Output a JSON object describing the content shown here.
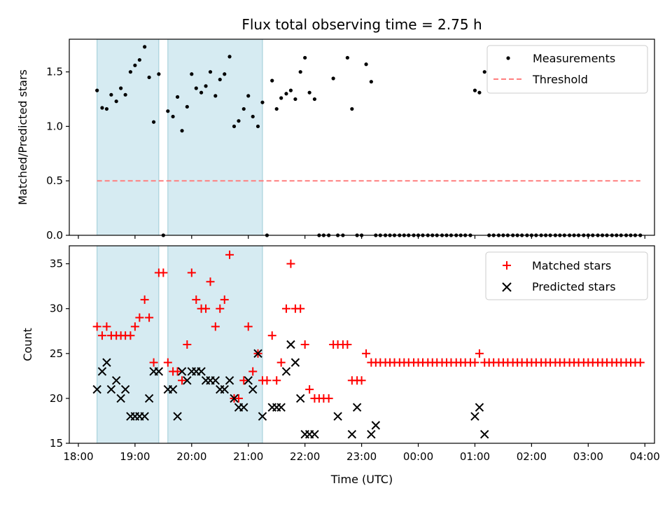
{
  "chart_data": [
    {
      "type": "scatter",
      "title": "Flux total observing time = 2.75 h",
      "ylabel": "Matched/Predicted stars",
      "xlabel": "",
      "xlim": [
        17.84,
        28.17
      ],
      "ylim": [
        0.0,
        1.8
      ],
      "yticks": [
        0.0,
        0.5,
        1.0,
        1.5
      ],
      "ytick_labels": [
        "0.0",
        "0.5",
        "1.0",
        "1.5"
      ],
      "shaded_intervals": [
        [
          18.33,
          19.42
        ],
        [
          19.58,
          21.25
        ]
      ],
      "threshold": {
        "value": 0.5,
        "x_range": [
          18.33,
          27.92
        ],
        "color": "#ff7f7f"
      },
      "legend": {
        "position": "top-right",
        "entries": [
          "Measurements",
          "Threshold"
        ]
      },
      "series": [
        {
          "name": "Measurements",
          "x": [
            18.33,
            18.42,
            18.5,
            18.58,
            18.67,
            18.75,
            18.83,
            18.92,
            19.0,
            19.08,
            19.17,
            19.25,
            19.33,
            19.42,
            19.5,
            19.58,
            19.67,
            19.75,
            19.83,
            19.92,
            20.0,
            20.08,
            20.17,
            20.25,
            20.33,
            20.42,
            20.5,
            20.58,
            20.67,
            20.75,
            20.83,
            20.92,
            21.0,
            21.08,
            21.17,
            21.25,
            21.33,
            21.42,
            21.5,
            21.58,
            21.67,
            21.75,
            21.83,
            21.92,
            22.0,
            22.08,
            22.17,
            22.25,
            22.33,
            22.42,
            22.5,
            22.58,
            22.67,
            22.75,
            22.83,
            22.92,
            23.0,
            23.08,
            23.17,
            23.25,
            23.33,
            23.42,
            23.5,
            23.58,
            23.67,
            23.75,
            23.83,
            23.92,
            24.0,
            24.08,
            24.17,
            24.25,
            24.33,
            24.42,
            24.5,
            24.58,
            24.67,
            24.75,
            24.83,
            24.92,
            25.0,
            25.08,
            25.17,
            25.25,
            25.33,
            25.42,
            25.5,
            25.58,
            25.67,
            25.75,
            25.83,
            25.92,
            26.0,
            26.08,
            26.17,
            26.25,
            26.33,
            26.42,
            26.5,
            26.58,
            26.67,
            26.75,
            26.83,
            26.92,
            27.0,
            27.08,
            27.17,
            27.25,
            27.33,
            27.42,
            27.5,
            27.58,
            27.67,
            27.75,
            27.83,
            27.92
          ],
          "y": [
            1.33,
            1.17,
            1.16,
            1.29,
            1.23,
            1.35,
            1.29,
            1.5,
            1.56,
            1.61,
            1.73,
            1.45,
            1.04,
            1.48,
            0.0,
            1.14,
            1.09,
            1.27,
            0.96,
            1.18,
            1.48,
            1.35,
            1.31,
            1.37,
            1.5,
            1.28,
            1.43,
            1.48,
            1.64,
            1.0,
            1.05,
            1.16,
            1.28,
            1.09,
            1.0,
            1.22,
            0.0,
            1.42,
            1.16,
            1.26,
            1.3,
            1.33,
            1.25,
            1.5,
            1.63,
            1.31,
            1.25,
            0.0,
            0.0,
            0.0,
            1.44,
            0.0,
            0.0,
            1.63,
            1.16,
            0.0,
            0.0,
            1.57,
            1.41,
            0.0,
            0.0,
            0.0,
            0.0,
            0.0,
            0.0,
            0.0,
            0.0,
            0.0,
            0.0,
            0.0,
            0.0,
            0.0,
            0.0,
            0.0,
            0.0,
            0.0,
            0.0,
            0.0,
            0.0,
            0.0,
            1.33,
            1.31,
            1.5,
            0.0,
            0.0,
            0.0,
            0.0,
            0.0,
            0.0,
            0.0,
            0.0,
            0.0,
            0.0,
            0.0,
            0.0,
            0.0,
            0.0,
            0.0,
            0.0,
            0.0,
            0.0,
            0.0,
            0.0,
            0.0,
            0.0,
            0.0,
            0.0,
            0.0,
            0.0,
            0.0,
            0.0,
            0.0,
            0.0,
            0.0,
            0.0,
            0.0
          ]
        }
      ]
    },
    {
      "type": "scatter",
      "title": "",
      "ylabel": "Count",
      "xlabel": "Time (UTC)",
      "xlim": [
        17.84,
        28.17
      ],
      "ylim": [
        15,
        37
      ],
      "yticks": [
        15,
        20,
        25,
        30,
        35
      ],
      "ytick_labels": [
        "15",
        "20",
        "25",
        "30",
        "35"
      ],
      "xticks": [
        18,
        19,
        20,
        21,
        22,
        23,
        24,
        25,
        26,
        27,
        28
      ],
      "xtick_labels": [
        "18:00",
        "19:00",
        "20:00",
        "21:00",
        "22:00",
        "23:00",
        "00:00",
        "01:00",
        "02:00",
        "03:00",
        "04:00"
      ],
      "shaded_intervals": [
        [
          18.33,
          19.42
        ],
        [
          19.58,
          21.25
        ]
      ],
      "legend": {
        "position": "top-right",
        "entries": [
          "Matched stars",
          "Predicted stars"
        ]
      },
      "series": [
        {
          "name": "Matched stars",
          "marker": "+",
          "color": "#ff0000",
          "x": [
            18.33,
            18.42,
            18.5,
            18.58,
            18.67,
            18.75,
            18.83,
            18.92,
            19.0,
            19.08,
            19.17,
            19.25,
            19.33,
            19.42,
            19.5,
            19.58,
            19.67,
            19.75,
            19.83,
            19.92,
            20.0,
            20.08,
            20.17,
            20.25,
            20.33,
            20.42,
            20.5,
            20.58,
            20.67,
            20.75,
            20.83,
            20.92,
            21.0,
            21.08,
            21.17,
            21.25,
            21.33,
            21.42,
            21.5,
            21.58,
            21.67,
            21.75,
            21.83,
            21.92,
            22.0,
            22.08,
            22.17,
            22.25,
            22.33,
            22.42,
            22.5,
            22.58,
            22.67,
            22.75,
            22.83,
            22.92,
            23.0,
            23.08,
            23.17,
            23.25,
            23.33,
            23.42,
            23.5,
            23.58,
            23.67,
            23.75,
            23.83,
            23.92,
            24.0,
            24.08,
            24.17,
            24.25,
            24.33,
            24.42,
            24.5,
            24.58,
            24.67,
            24.75,
            24.83,
            24.92,
            25.0,
            25.08,
            25.17,
            25.25,
            25.33,
            25.42,
            25.5,
            25.58,
            25.67,
            25.75,
            25.83,
            25.92,
            26.0,
            26.08,
            26.17,
            26.25,
            26.33,
            26.42,
            26.5,
            26.58,
            26.67,
            26.75,
            26.83,
            26.92,
            27.0,
            27.08,
            27.17,
            27.25,
            27.33,
            27.42,
            27.5,
            27.58,
            27.67,
            27.75,
            27.83,
            27.92
          ],
          "y": [
            28,
            27,
            28,
            27,
            27,
            27,
            27,
            27,
            28,
            29,
            31,
            29,
            24,
            34,
            34,
            24,
            23,
            23,
            22,
            26,
            34,
            31,
            30,
            30,
            33,
            28,
            30,
            31,
            36,
            20,
            20,
            22,
            28,
            23,
            25,
            22,
            22,
            27,
            22,
            24,
            30,
            35,
            30,
            30,
            26,
            21,
            20,
            20,
            20,
            20,
            26,
            26,
            26,
            26,
            22,
            22,
            22,
            25,
            24,
            24,
            24,
            24,
            24,
            24,
            24,
            24,
            24,
            24,
            24,
            24,
            24,
            24,
            24,
            24,
            24,
            24,
            24,
            24,
            24,
            24,
            24,
            25,
            24,
            24,
            24,
            24,
            24,
            24,
            24,
            24,
            24,
            24,
            24,
            24,
            24,
            24,
            24,
            24,
            24,
            24,
            24,
            24,
            24,
            24,
            24,
            24,
            24,
            24,
            24,
            24,
            24,
            24,
            24,
            24,
            24,
            24
          ]
        },
        {
          "name": "Predicted stars",
          "marker": "x",
          "color": "#000000",
          "x": [
            18.33,
            18.42,
            18.5,
            18.58,
            18.67,
            18.75,
            18.83,
            18.92,
            19.0,
            19.08,
            19.17,
            19.25,
            19.33,
            19.42,
            19.58,
            19.67,
            19.75,
            19.83,
            19.92,
            20.0,
            20.08,
            20.17,
            20.25,
            20.33,
            20.42,
            20.5,
            20.58,
            20.67,
            20.75,
            20.83,
            20.92,
            21.0,
            21.08,
            21.17,
            21.25,
            21.42,
            21.5,
            21.58,
            21.67,
            21.75,
            21.83,
            21.92,
            22.0,
            22.08,
            22.17,
            22.58,
            22.83,
            22.92,
            23.17,
            23.25,
            25.0,
            25.08,
            25.17
          ],
          "y": [
            21,
            23,
            24,
            21,
            22,
            20,
            21,
            18,
            18,
            18,
            18,
            20,
            23,
            23,
            21,
            21,
            18,
            23,
            22,
            23,
            23,
            23,
            22,
            22,
            22,
            21,
            21,
            22,
            20,
            19,
            19,
            22,
            21,
            25,
            18,
            19,
            19,
            19,
            23,
            26,
            24,
            20,
            16,
            16,
            16,
            18,
            16,
            19,
            16,
            17,
            18,
            19,
            16
          ]
        }
      ]
    }
  ]
}
